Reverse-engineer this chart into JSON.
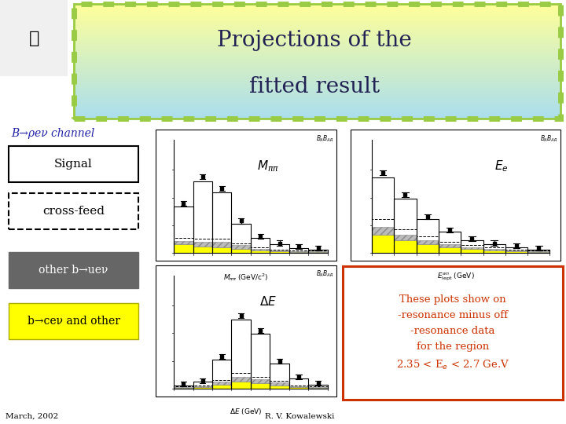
{
  "title_line1": "Projections of the",
  "title_line2": "fitted result",
  "title_bg_top": "#ffff99",
  "title_bg_bot": "#aaddee",
  "title_border_color": "#99cc44",
  "bg_color": "#ffffff",
  "channel_text": "B→ρeν channel",
  "channel_color": "#2222aa",
  "signal_label": "Signal",
  "crossfeed_label": "cross-feed",
  "other_label": "other b→ueν",
  "other_bg": "#666666",
  "other_fg": "#ffffff",
  "bcev_label": "b→ceν and other",
  "bcev_bg": "#ffff00",
  "bcev_fg": "#000000",
  "note_text": "These plots show on\n-resonance minus off\n-resonance data\nfor the region\n2.35 < Eₑ < 2.7 Ge.V",
  "note_color": "#cc3300",
  "note_border": "#cc3300",
  "footer": "March, 2002",
  "footer2": "R. V. Kowalewski",
  "mpp_label": "Mππ",
  "ee_label": "Eₑ",
  "de_label": "ΔE",
  "mpp_xlabel": "$M_{\\pi\\pi}$ (GeV/c$^2$)",
  "ee_xlabel": "$E_{\\rm lept}^{an}$ (GeV)",
  "de_xlabel": "$\\Delta E$ (GeV)",
  "plot_bg": "#ffffff",
  "yellow_color": "#ffff00",
  "gray_color": "#999999",
  "hatch_color": "#aaaaaa"
}
